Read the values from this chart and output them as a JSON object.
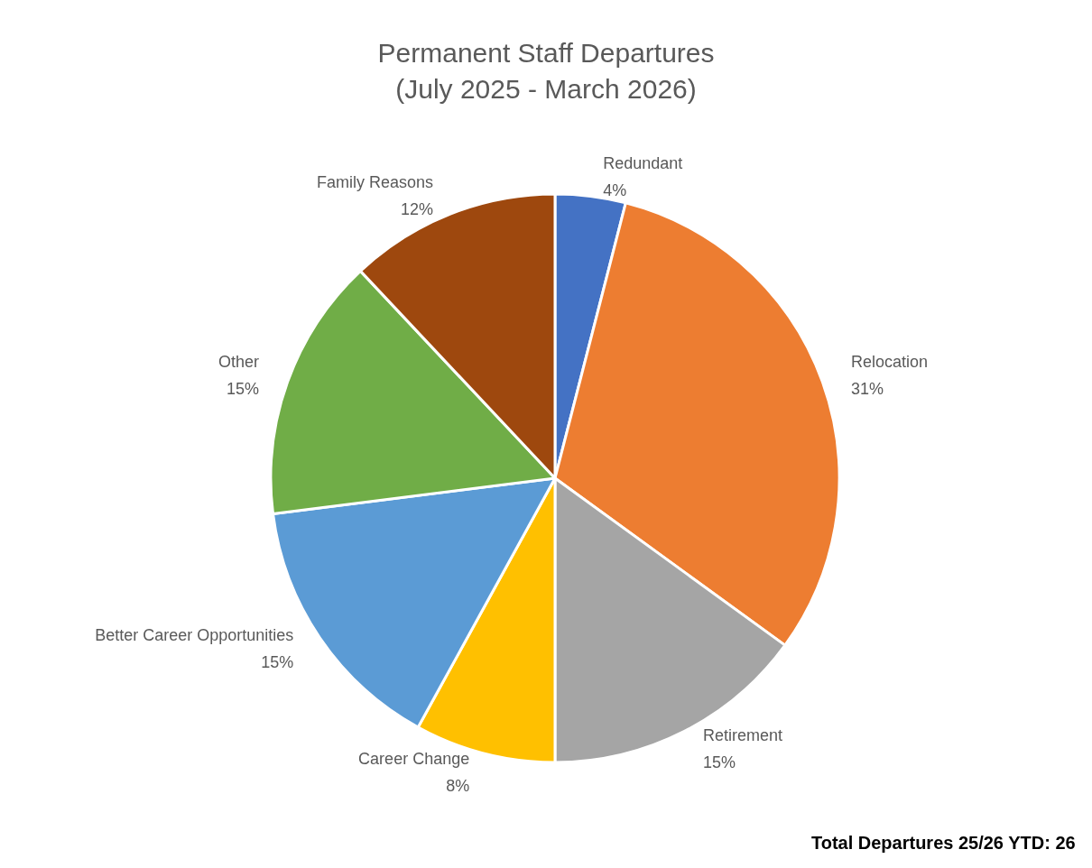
{
  "chart_data": {
    "type": "pie",
    "title": "Permanent Staff Departures",
    "subtitle": "(July 2025 - March 2026)",
    "categories": [
      "Redundant",
      "Relocation",
      "Retirement",
      "Career Change",
      "Better Career Opportunities",
      "Other",
      "Family Reasons"
    ],
    "values": [
      4,
      31,
      15,
      8,
      15,
      15,
      12
    ],
    "value_labels": [
      "4%",
      "31%",
      "15%",
      "8%",
      "15%",
      "15%",
      "12%"
    ],
    "colors": [
      "#4472c4",
      "#ed7d31",
      "#a5a5a5",
      "#ffc000",
      "#5b9bd5",
      "#70ad47",
      "#9e480e"
    ],
    "legend": false,
    "annotations": [
      "Total Departures 25/26 YTD: 26"
    ]
  }
}
